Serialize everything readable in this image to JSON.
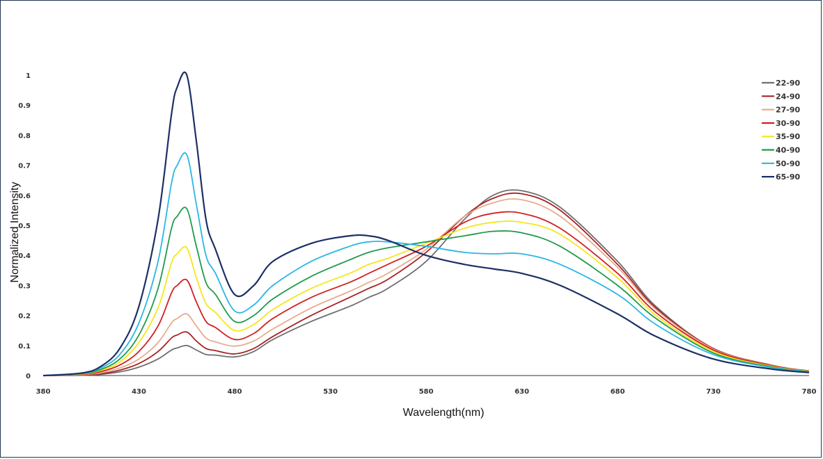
{
  "chart_data": {
    "type": "line",
    "title": "",
    "xlabel": "Wavelength(nm)",
    "ylabel": "Normalized Intensity",
    "xlim": [
      380,
      780
    ],
    "ylim": [
      0,
      1
    ],
    "x_ticks": [
      "380",
      "430",
      "480",
      "530",
      "580",
      "630",
      "680",
      "730",
      "780"
    ],
    "y_ticks": [
      "0",
      "0.1",
      "0.2",
      "0.3",
      "0.4",
      "0.5",
      "0.6",
      "0.7",
      "0.8",
      "0.9",
      "1"
    ],
    "grid": false,
    "legend_position": "top-right",
    "x": [
      380,
      400,
      410,
      420,
      430,
      440,
      447,
      450,
      455,
      460,
      465,
      470,
      480,
      490,
      500,
      520,
      540,
      550,
      560,
      580,
      600,
      615,
      630,
      650,
      680,
      700,
      730,
      760,
      780
    ],
    "series": [
      {
        "name": "22-90",
        "color": "#6f6f6f",
        "values": [
          0,
          0.001,
          0.004,
          0.012,
          0.028,
          0.055,
          0.085,
          0.092,
          0.1,
          0.085,
          0.07,
          0.068,
          0.062,
          0.08,
          0.12,
          0.18,
          0.23,
          0.26,
          0.29,
          0.38,
          0.52,
          0.6,
          0.615,
          0.56,
          0.38,
          0.23,
          0.09,
          0.035,
          0.015
        ]
      },
      {
        "name": "24-90",
        "color": "#a62324",
        "values": [
          0,
          0.002,
          0.006,
          0.018,
          0.04,
          0.08,
          0.125,
          0.135,
          0.145,
          0.115,
          0.09,
          0.083,
          0.072,
          0.09,
          0.13,
          0.2,
          0.26,
          0.29,
          0.32,
          0.41,
          0.53,
          0.59,
          0.605,
          0.55,
          0.37,
          0.225,
          0.09,
          0.035,
          0.015
        ]
      },
      {
        "name": "27-90",
        "color": "#e8ab8e",
        "values": [
          0,
          0.003,
          0.009,
          0.025,
          0.055,
          0.11,
          0.175,
          0.19,
          0.205,
          0.165,
          0.125,
          0.112,
          0.098,
          0.115,
          0.155,
          0.225,
          0.28,
          0.31,
          0.34,
          0.42,
          0.53,
          0.575,
          0.585,
          0.53,
          0.36,
          0.22,
          0.088,
          0.034,
          0.015
        ]
      },
      {
        "name": "30-90",
        "color": "#d31f1f",
        "values": [
          0,
          0.004,
          0.013,
          0.035,
          0.08,
          0.165,
          0.275,
          0.3,
          0.318,
          0.245,
          0.18,
          0.16,
          0.12,
          0.14,
          0.19,
          0.26,
          0.31,
          0.34,
          0.37,
          0.43,
          0.51,
          0.54,
          0.54,
          0.49,
          0.34,
          0.21,
          0.085,
          0.033,
          0.015
        ]
      },
      {
        "name": "35-90",
        "color": "#f5e61b",
        "values": [
          0,
          0.005,
          0.017,
          0.045,
          0.11,
          0.225,
          0.375,
          0.405,
          0.425,
          0.325,
          0.24,
          0.21,
          0.15,
          0.17,
          0.22,
          0.29,
          0.34,
          0.37,
          0.39,
          0.44,
          0.49,
          0.51,
          0.51,
          0.47,
          0.325,
          0.2,
          0.08,
          0.031,
          0.014
        ]
      },
      {
        "name": "40-90",
        "color": "#1f9a4a",
        "values": [
          0,
          0.006,
          0.02,
          0.055,
          0.135,
          0.29,
          0.49,
          0.53,
          0.555,
          0.43,
          0.31,
          0.27,
          0.18,
          0.2,
          0.255,
          0.33,
          0.385,
          0.41,
          0.425,
          0.445,
          0.465,
          0.48,
          0.475,
          0.43,
          0.3,
          0.19,
          0.075,
          0.029,
          0.013
        ]
      },
      {
        "name": "50-90",
        "color": "#2ab6e4",
        "values": [
          0,
          0.007,
          0.025,
          0.07,
          0.175,
          0.38,
          0.64,
          0.7,
          0.735,
          0.57,
          0.4,
          0.34,
          0.215,
          0.235,
          0.3,
          0.38,
          0.43,
          0.445,
          0.445,
          0.43,
          0.41,
          0.405,
          0.405,
          0.37,
          0.27,
          0.17,
          0.07,
          0.027,
          0.012
        ]
      },
      {
        "name": "65-90",
        "color": "#1c2f66",
        "values": [
          0,
          0.008,
          0.03,
          0.09,
          0.23,
          0.52,
          0.87,
          0.96,
          1.0,
          0.78,
          0.52,
          0.42,
          0.27,
          0.3,
          0.38,
          0.44,
          0.465,
          0.465,
          0.45,
          0.4,
          0.37,
          0.355,
          0.34,
          0.3,
          0.205,
          0.13,
          0.055,
          0.022,
          0.01
        ]
      }
    ]
  }
}
